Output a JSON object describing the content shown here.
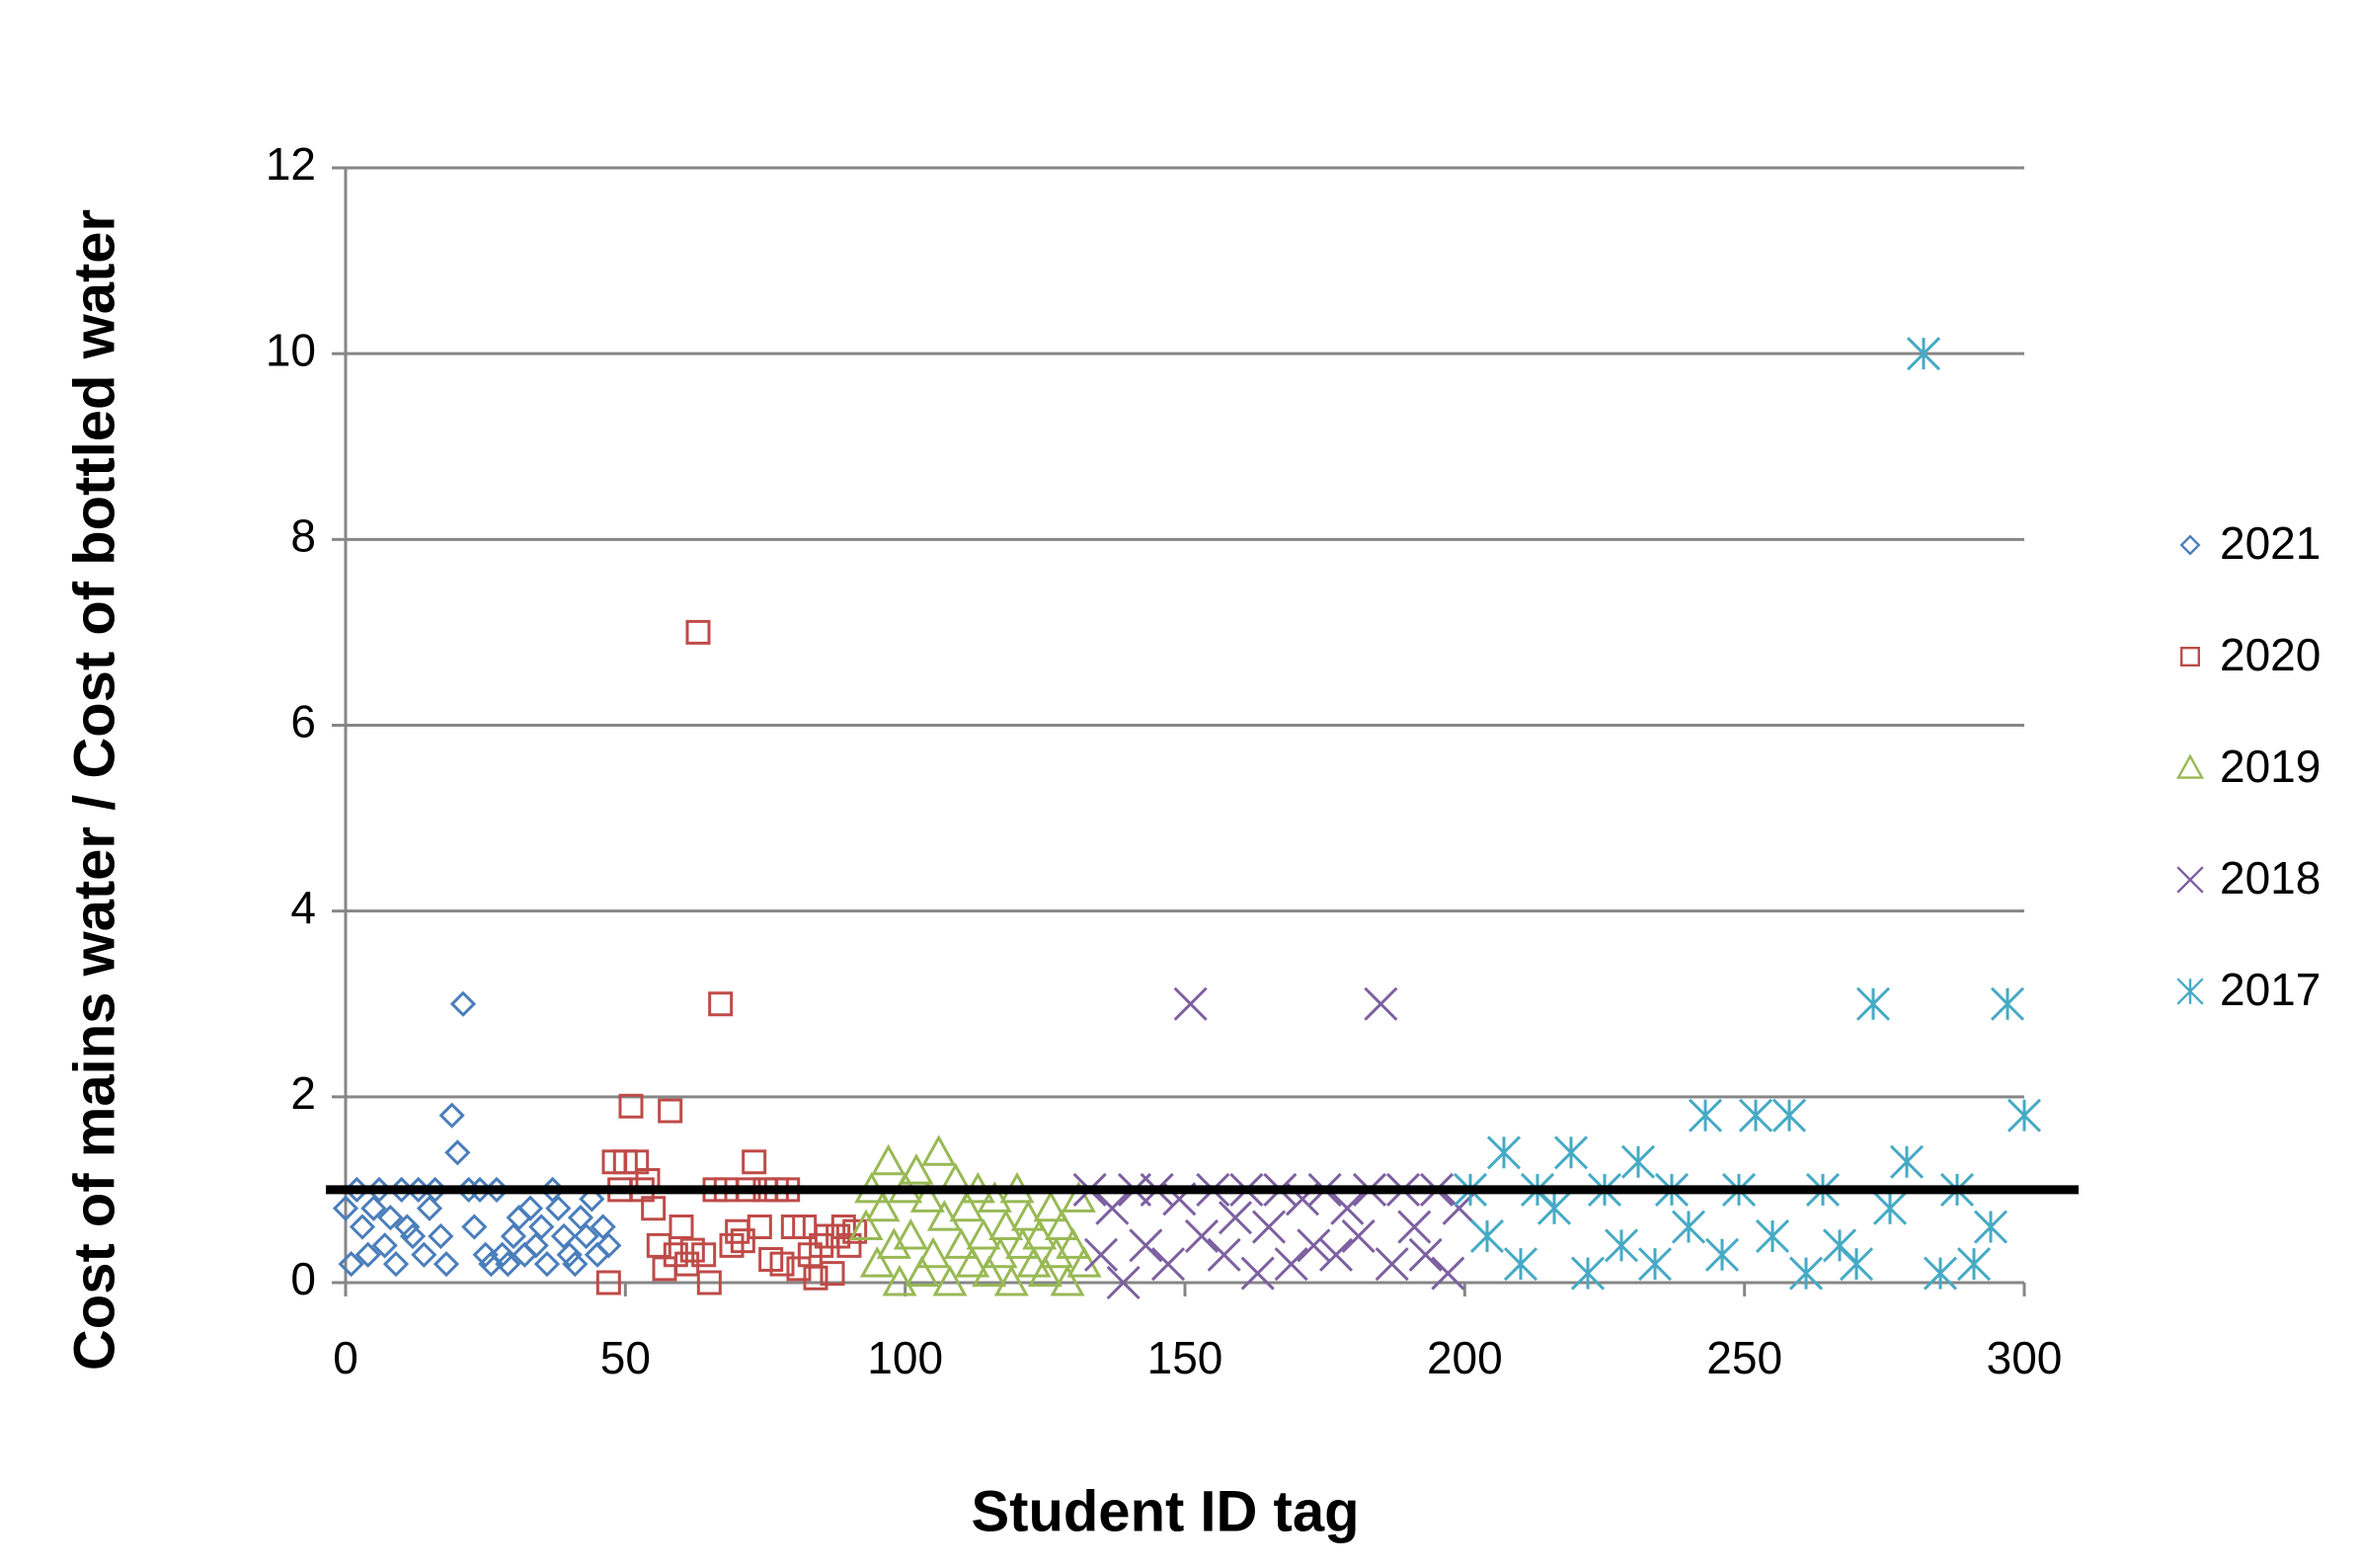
{
  "chart_data": {
    "type": "scatter",
    "x_label": "Student ID tag",
    "y_label": "Cost of mains water / Cost of bottled water",
    "xlim": [
      0,
      300
    ],
    "xticks": [
      0,
      50,
      100,
      150,
      200,
      250,
      300
    ],
    "ylim": [
      0,
      12
    ],
    "yticks": [
      0,
      2,
      4,
      6,
      8,
      10,
      12
    ],
    "grid": true,
    "legend": "right",
    "hline": 1,
    "hline_color": "#000000",
    "series": [
      {
        "name": "2021",
        "color": "#4a7ebb",
        "marker": "diamond",
        "x": [
          0,
          1,
          2,
          3,
          4,
          5,
          6,
          7,
          8,
          9,
          10,
          11,
          12,
          13,
          14,
          15,
          16,
          17,
          18,
          19,
          20,
          21,
          22,
          23,
          24,
          25,
          26,
          27,
          28,
          29,
          30,
          31,
          32,
          33,
          34,
          35,
          36,
          37,
          38,
          39,
          40,
          41,
          42,
          43,
          44,
          45,
          46,
          47
        ],
        "values": [
          0.8,
          0.2,
          1,
          0.6,
          0.3,
          0.8,
          1,
          0.4,
          0.7,
          0.2,
          1,
          0.6,
          0.5,
          1,
          0.3,
          0.8,
          1,
          0.5,
          0.2,
          1.8,
          1.4,
          3,
          1,
          0.6,
          1,
          0.3,
          0.2,
          1,
          0.3,
          0.2,
          0.5,
          0.7,
          0.3,
          0.8,
          0.4,
          0.6,
          0.2,
          1,
          0.8,
          0.5,
          0.3,
          0.2,
          0.7,
          0.5,
          0.9,
          0.3,
          0.6,
          0.4
        ]
      },
      {
        "name": "2020",
        "color": "#be4b48",
        "marker": "square",
        "x": [
          47,
          48,
          49,
          50,
          51,
          52,
          53,
          54,
          55,
          56,
          57,
          58,
          59,
          60,
          61,
          62,
          63,
          64,
          65,
          66,
          67,
          68,
          69,
          70,
          71,
          72,
          73,
          74,
          75,
          76,
          77,
          78,
          79,
          80,
          81,
          82,
          83,
          84,
          85,
          86,
          87,
          88,
          89,
          90,
          91
        ],
        "values": [
          0,
          1.3,
          1,
          1.3,
          1.9,
          1.3,
          1,
          1.1,
          0.8,
          0.4,
          0.15,
          1.85,
          0.3,
          0.6,
          0.2,
          0.35,
          7,
          0.3,
          0,
          1,
          3,
          1,
          0.4,
          0.55,
          0.45,
          1,
          1.3,
          0.6,
          1,
          0.25,
          1,
          0.2,
          1,
          0.6,
          0.15,
          0.6,
          0.3,
          0.05,
          0.4,
          0.5,
          0.1,
          0.5,
          0.6,
          0.4,
          0.55
        ]
      },
      {
        "name": "2019",
        "color": "#98b954",
        "marker": "triangle",
        "x": [
          93,
          94,
          95,
          96,
          97,
          98,
          99,
          100,
          101,
          102,
          103,
          104,
          105,
          106,
          107,
          108,
          109,
          110,
          111,
          112,
          113,
          114,
          115,
          116,
          117,
          118,
          119,
          120,
          121,
          122,
          123,
          124,
          125,
          126,
          127,
          128,
          129,
          130,
          131,
          132
        ],
        "values": [
          0.6,
          1,
          0.2,
          0.8,
          1.3,
          0.4,
          0,
          1,
          0.5,
          1.2,
          0.1,
          0.9,
          0.3,
          1.4,
          0.7,
          0,
          1.1,
          0.4,
          0.8,
          0.2,
          1,
          0.5,
          0.1,
          0.9,
          0.3,
          0.6,
          0,
          1,
          0.4,
          0.7,
          0.2,
          0.5,
          0.1,
          0.8,
          0.3,
          0.6,
          0,
          0.4,
          0.9,
          0.2
        ]
      },
      {
        "name": "2018",
        "color": "#7d60a0",
        "marker": "cross",
        "x": [
          133,
          135,
          137,
          139,
          141,
          143,
          145,
          147,
          149,
          151,
          153,
          155,
          157,
          159,
          161,
          163,
          165,
          167,
          169,
          171,
          173,
          175,
          177,
          179,
          181,
          183,
          185,
          187,
          189,
          191,
          193,
          195,
          197,
          199
        ],
        "values": [
          1,
          0.3,
          0.8,
          0,
          1,
          0.4,
          1,
          0.2,
          0.9,
          3,
          0.5,
          1,
          0.3,
          0.7,
          1,
          0.1,
          0.6,
          1,
          0.2,
          0.9,
          0.4,
          1,
          0.3,
          0.8,
          0.5,
          1,
          3,
          0.2,
          1,
          0.6,
          0.3,
          1,
          0.1,
          0.8
        ]
      },
      {
        "name": "2017",
        "color": "#46aac5",
        "marker": "star",
        "x": [
          201,
          204,
          207,
          210,
          213,
          216,
          219,
          222,
          225,
          228,
          231,
          234,
          237,
          240,
          243,
          246,
          249,
          252,
          255,
          258,
          261,
          264,
          267,
          270,
          273,
          276,
          279,
          282,
          285,
          288,
          291,
          294,
          297,
          300
        ],
        "values": [
          1,
          0.5,
          1.4,
          0.2,
          1,
          0.8,
          1.4,
          0.1,
          1,
          0.4,
          1.3,
          0.2,
          1,
          0.6,
          1.8,
          0.3,
          1,
          1.8,
          0.5,
          1.8,
          0.1,
          1,
          0.4,
          0.2,
          3,
          0.8,
          1.3,
          10,
          0.1,
          1,
          0.2,
          0.6,
          3,
          1.8
        ]
      }
    ]
  }
}
